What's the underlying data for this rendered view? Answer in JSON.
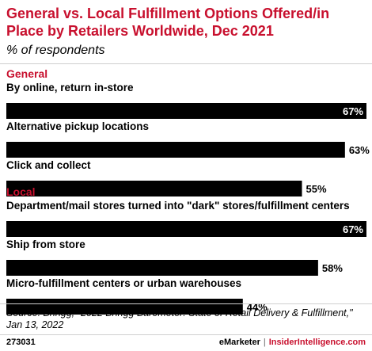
{
  "header": {
    "title": "General vs. Local Fulfillment Options Offered/in Place by Retailers Worldwide, Dec 2021",
    "subtitle": "% of respondents"
  },
  "chart_data": {
    "type": "bar",
    "orientation": "horizontal",
    "xlim": [
      0,
      67
    ],
    "groups": [
      {
        "name": "General",
        "categories": [
          "By online, return in-store",
          "Alternative pickup locations",
          "Click and collect"
        ],
        "values": [
          67,
          63,
          55
        ],
        "value_labels": [
          "67%",
          "63%",
          "55%"
        ]
      },
      {
        "name": "Local",
        "categories": [
          "Department/mail stores turned into \"dark\" stores/fulfillment centers",
          "Ship from store",
          "Micro-fulfillment centers or urban warehouses"
        ],
        "values": [
          67,
          58,
          44
        ],
        "value_labels": [
          "67%",
          "58%",
          "44%"
        ]
      }
    ],
    "colors": {
      "bar": "#000000",
      "group_label": "#c8102e",
      "title": "#c8102e"
    },
    "grid": false
  },
  "footer": {
    "source": "Source: Bringg, \"2022 Bringg Barometer: State of Retail Delivery & Fulfillment,\" Jan 13, 2022",
    "chart_id": "273031",
    "brand": "eMarketer",
    "separator": "|",
    "brand2": "InsiderIntelligence.com"
  }
}
